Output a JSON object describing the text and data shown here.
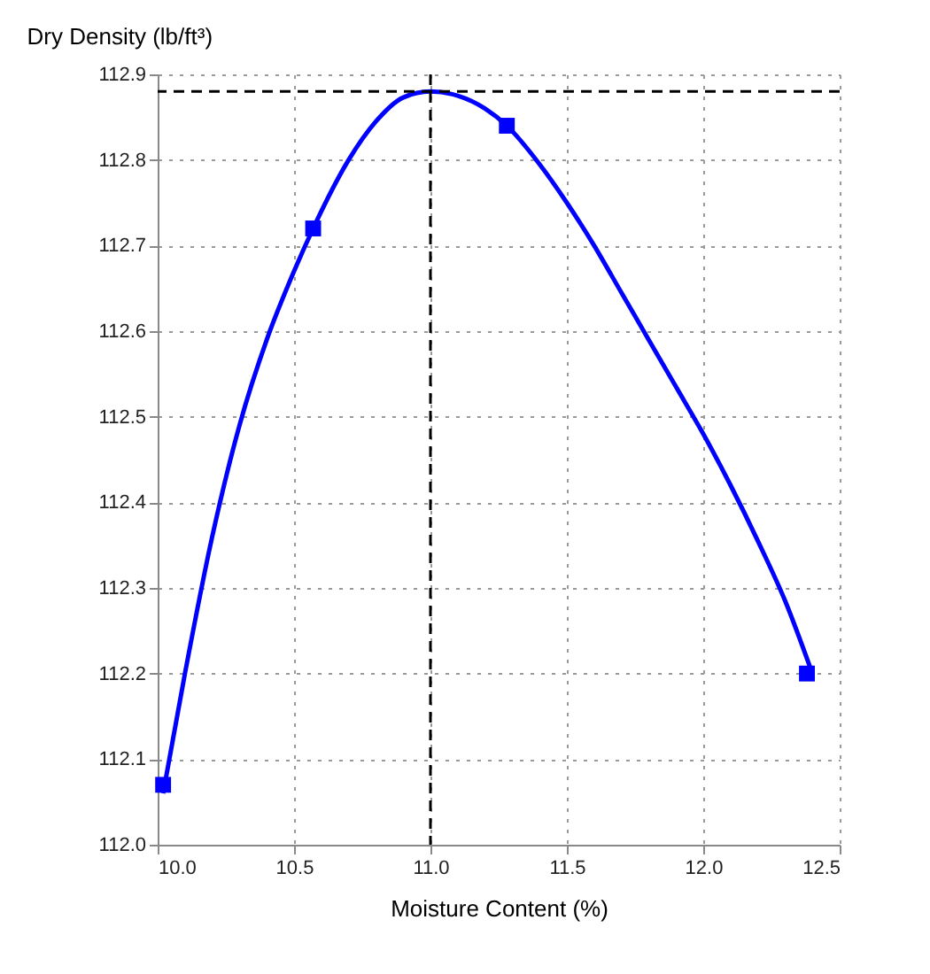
{
  "chart_data": {
    "type": "line",
    "xlabel": "Moisture Content (%)",
    "ylabel": "Dry Density (lb/ft³)",
    "xlim": [
      10.0,
      12.5
    ],
    "xticks": [
      {
        "value": 10.0,
        "label": "10.0"
      },
      10.5,
      {
        "value": 11.0,
        "label": "11.0"
      },
      11.5,
      {
        "value": 12.0,
        "label": "12.0"
      },
      12.5
    ],
    "ylim": [
      112.0,
      112.9
    ],
    "yticks": [
      {
        "value": 112.0,
        "label": "112.0"
      },
      112.1,
      112.2,
      112.3,
      112.4,
      112.5,
      112.6,
      112.7,
      112.8,
      112.9
    ],
    "grid": true,
    "series": [
      {
        "color": "#0000ff",
        "marker": "none",
        "line_style": "solid",
        "x": [
          10.02,
          10.1,
          10.2,
          10.3,
          10.4,
          10.5,
          10.57,
          10.7,
          10.8,
          10.9,
          11.0,
          11.1,
          11.2,
          11.28,
          11.4,
          11.5,
          11.6,
          11.7,
          11.8,
          11.9,
          12.0,
          12.1,
          12.2,
          12.3,
          12.4
        ],
        "values": [
          112.06,
          112.2,
          112.36,
          112.49,
          112.59,
          112.67,
          112.72,
          112.8,
          112.845,
          112.873,
          112.88,
          112.875,
          112.86,
          112.84,
          112.795,
          112.75,
          112.7,
          112.645,
          112.59,
          112.535,
          112.48,
          112.42,
          112.355,
          112.285,
          112.2
        ]
      },
      {
        "type": "scatter",
        "color": "#0000ff",
        "marker": "square",
        "x": [
          10.02,
          10.57,
          11.28,
          12.38
        ],
        "values": [
          112.07,
          112.72,
          112.84,
          112.2
        ]
      }
    ],
    "ref_lines": [
      {
        "axis": "x",
        "value": 11.0,
        "color": "#000000",
        "line_style": "dashed"
      },
      {
        "axis": "y",
        "value": 112.88,
        "color": "#000000",
        "line_style": "dashed"
      }
    ]
  }
}
